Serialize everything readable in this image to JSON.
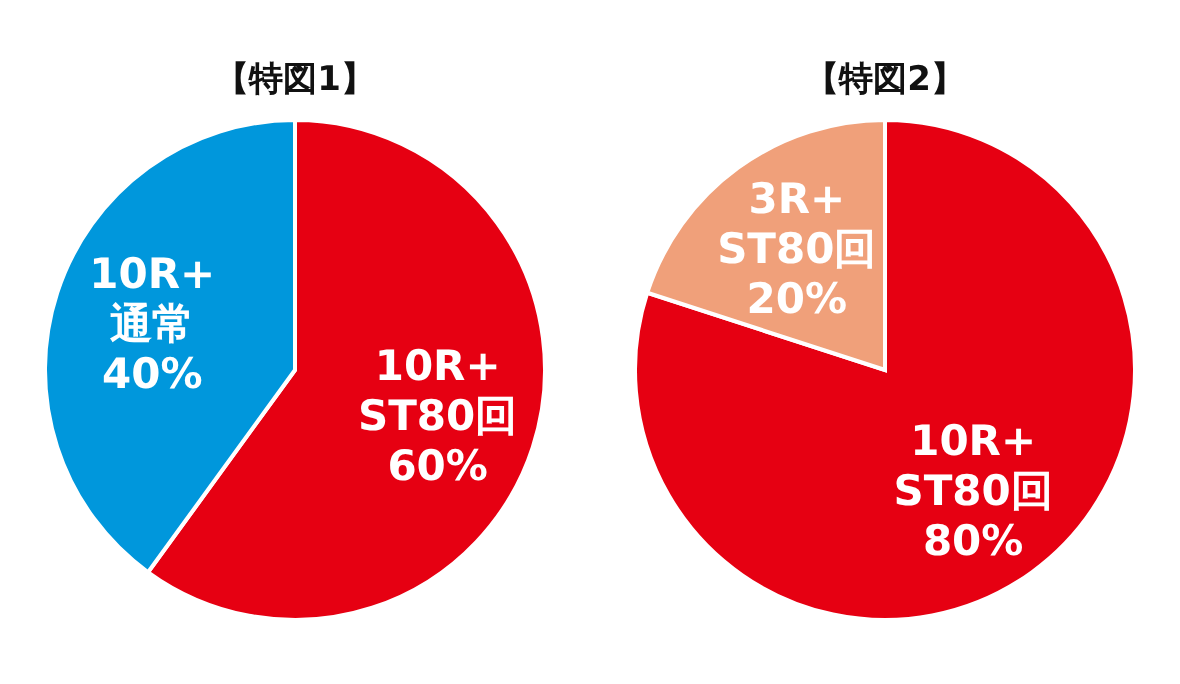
{
  "chart_data": [
    {
      "type": "pie",
      "title": "【特図1】",
      "categories": [
        "10R+\nST80回",
        "10R+\n通常"
      ],
      "values": [
        60,
        40
      ],
      "colors": [
        "#e60012",
        "#0097dc"
      ],
      "value_labels": [
        "60%",
        "40%"
      ]
    },
    {
      "type": "pie",
      "title": "【特図2】",
      "categories": [
        "10R+\nST80回",
        "3R+\nST80回"
      ],
      "values": [
        80,
        20
      ],
      "colors": [
        "#e60012",
        "#f0a07a"
      ],
      "value_labels": [
        "80%",
        "20%"
      ]
    }
  ]
}
